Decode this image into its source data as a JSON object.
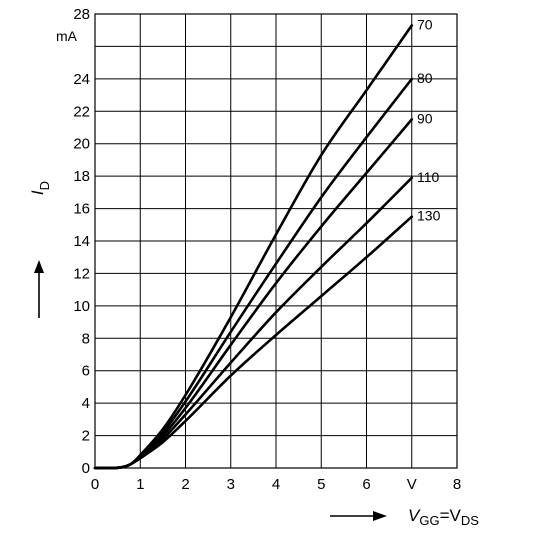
{
  "chart_data": {
    "type": "line",
    "xlabel": {
      "main": "V",
      "sub1": "GG",
      "mid": "=V",
      "sub2": "DS"
    },
    "ylabel": {
      "main": "I",
      "sub": "D"
    },
    "y_unit": "mA",
    "x_unit": "V",
    "xlim": [
      0,
      8
    ],
    "ylim": [
      0,
      28
    ],
    "x_ticks": [
      "0",
      "1",
      "2",
      "3",
      "4",
      "5",
      "6",
      "V",
      "8"
    ],
    "y_ticks": [
      "0",
      "2",
      "4",
      "6",
      "8",
      "10",
      "12",
      "14",
      "16",
      "18",
      "20",
      "22",
      "24",
      "28"
    ],
    "grid": true,
    "series": [
      {
        "name": "70",
        "x": [
          0,
          0.6,
          0.8,
          1.0,
          1.5,
          2.0,
          3.0,
          4.0,
          5.0,
          6.0,
          7.0
        ],
        "y": [
          0,
          0.05,
          0.25,
          0.8,
          2.4,
          4.5,
          9.3,
          14.4,
          19.3,
          23.3,
          27.3
        ]
      },
      {
        "name": "80",
        "x": [
          0,
          0.6,
          0.8,
          1.0,
          1.5,
          2.0,
          3.0,
          4.0,
          5.0,
          6.0,
          7.0
        ],
        "y": [
          0,
          0.05,
          0.25,
          0.75,
          2.2,
          4.1,
          8.4,
          12.6,
          16.7,
          20.4,
          24.0
        ]
      },
      {
        "name": "90",
        "x": [
          0,
          0.6,
          0.8,
          1.0,
          1.5,
          2.0,
          3.0,
          4.0,
          5.0,
          6.0,
          7.0
        ],
        "y": [
          0,
          0.05,
          0.25,
          0.7,
          2.0,
          3.7,
          7.6,
          11.4,
          14.9,
          18.2,
          21.5
        ]
      },
      {
        "name": "110",
        "x": [
          0,
          0.6,
          0.8,
          1.0,
          1.5,
          2.0,
          3.0,
          4.0,
          5.0,
          6.0,
          7.0
        ],
        "y": [
          0,
          0.05,
          0.25,
          0.65,
          1.8,
          3.3,
          6.5,
          9.6,
          12.4,
          15.1,
          17.9
        ]
      },
      {
        "name": "130",
        "x": [
          0,
          0.6,
          0.8,
          1.0,
          1.5,
          2.0,
          3.0,
          4.0,
          5.0,
          6.0,
          7.0
        ],
        "y": [
          0,
          0.05,
          0.25,
          0.6,
          1.6,
          2.9,
          5.7,
          8.2,
          10.6,
          13.0,
          15.5
        ]
      }
    ]
  }
}
